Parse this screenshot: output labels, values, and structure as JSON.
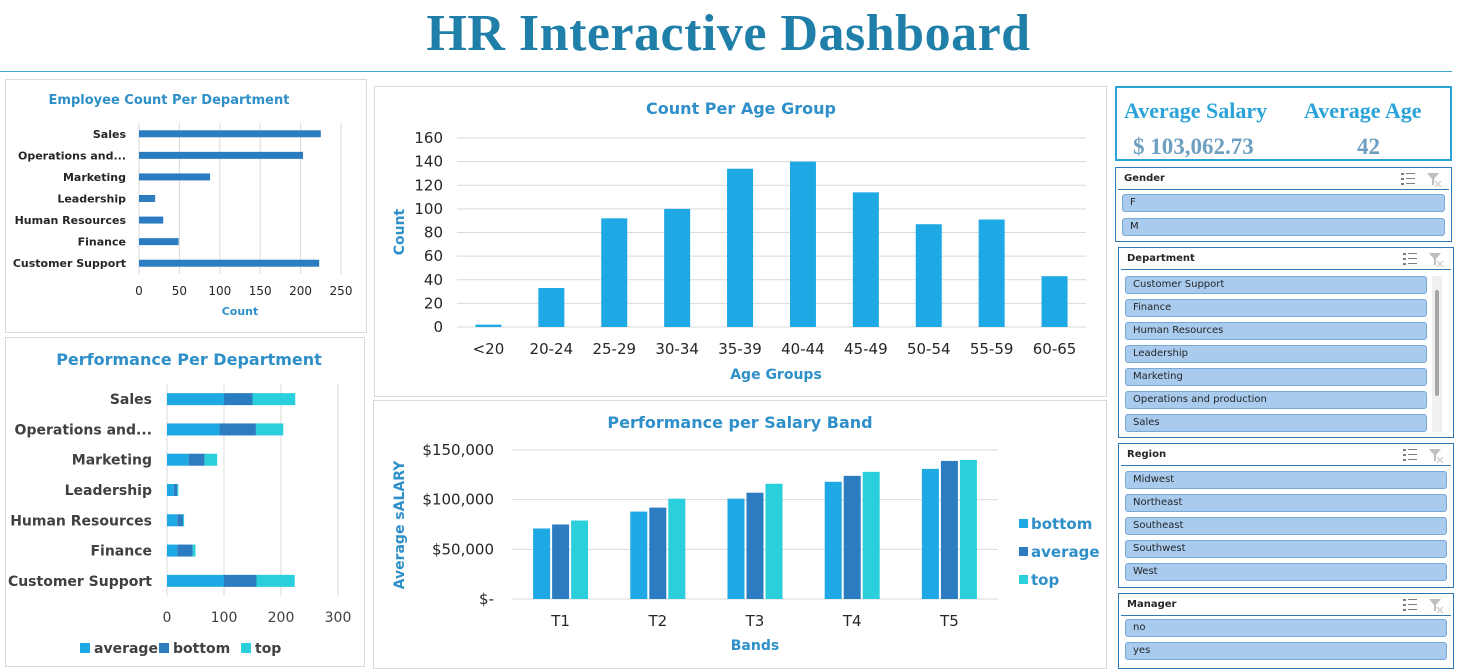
{
  "page": {
    "title": "HR Interactive Dashboard"
  },
  "colors": {
    "title": "#1F7FA8",
    "bar_light": "#1EA8E4",
    "bar_dark": "#2B7CC0",
    "bar_teal": "#2ACFDB",
    "axis_title": "#2E8FC9"
  },
  "kpi": {
    "avg_salary_label": "Average Salary",
    "avg_salary_value": "$ 103,062.73",
    "avg_age_label": "Average Age",
    "avg_age_value": "42"
  },
  "slicers": {
    "gender": {
      "title": "Gender",
      "items": [
        "F",
        "M"
      ]
    },
    "department": {
      "title": "Department",
      "items": [
        "Customer Support",
        "Finance",
        "Human Resources",
        "Leadership",
        "Marketing",
        "Operations and production",
        "Sales"
      ]
    },
    "region": {
      "title": "Region",
      "items": [
        "Midwest",
        "Northeast",
        "Southeast",
        "Southwest",
        "West"
      ]
    },
    "manager": {
      "title": "Manager",
      "items": [
        "no",
        "yes"
      ]
    }
  },
  "chart_data": [
    {
      "id": "dept",
      "type": "bar",
      "orientation": "horizontal",
      "title": "Employee Count Per Department",
      "xlabel": "Count",
      "categories": [
        "Sales",
        "Operations and...",
        "Marketing",
        "Leadership",
        "Human Resources",
        "Finance",
        "Customer Support"
      ],
      "values": [
        225,
        203,
        88,
        20,
        30,
        49,
        223
      ],
      "xlim": [
        0,
        250
      ],
      "xticks": [
        0,
        50,
        100,
        150,
        200,
        250
      ],
      "grid": true
    },
    {
      "id": "age",
      "type": "bar",
      "title": "Count Per Age Group",
      "xlabel": "Age Groups",
      "ylabel": "Count",
      "categories": [
        "<20",
        "20-24",
        "25-29",
        "30-34",
        "35-39",
        "40-44",
        "45-49",
        "50-54",
        "55-59",
        "60-65"
      ],
      "values": [
        2,
        33,
        92,
        100,
        134,
        140,
        114,
        87,
        91,
        43
      ],
      "ylim": [
        0,
        160
      ],
      "yticks": [
        0,
        20,
        40,
        60,
        80,
        100,
        120,
        140,
        160
      ],
      "grid": true
    },
    {
      "id": "perf",
      "type": "bar",
      "orientation": "horizontal",
      "stacked": true,
      "title": "Performance Per Department",
      "categories": [
        "Sales",
        "Operations and...",
        "Marketing",
        "Leadership",
        "Human Resources",
        "Finance",
        "Customer Support"
      ],
      "series": [
        {
          "name": "average",
          "values": [
            100,
            92,
            38,
            12,
            18,
            18,
            100
          ]
        },
        {
          "name": "bottom",
          "values": [
            50,
            64,
            28,
            6,
            10,
            27,
            57
          ]
        },
        {
          "name": "top",
          "values": [
            75,
            48,
            22,
            2,
            2,
            5,
            67
          ]
        }
      ],
      "xlim": [
        0,
        300
      ],
      "xticks": [
        0,
        100,
        200,
        300
      ],
      "legend": "bottom",
      "grid": true
    },
    {
      "id": "salary",
      "type": "bar",
      "title": "Performance per Salary Band",
      "xlabel": "Bands",
      "ylabel": "Average sALARY",
      "categories": [
        "T1",
        "T2",
        "T3",
        "T4",
        "T5"
      ],
      "series": [
        {
          "name": "bottom",
          "values": [
            71000,
            88000,
            101000,
            118000,
            131000
          ]
        },
        {
          "name": "average",
          "values": [
            75000,
            92000,
            107000,
            124000,
            139000
          ]
        },
        {
          "name": "top",
          "values": [
            79000,
            101000,
            116000,
            128000,
            140000
          ]
        }
      ],
      "ylim": [
        0,
        150000
      ],
      "yticks": [
        0,
        50000,
        100000,
        150000
      ],
      "ytick_labels": [
        "$-",
        "$50,000",
        "$100,000",
        "$150,000"
      ],
      "legend": "right",
      "grid": true
    }
  ]
}
